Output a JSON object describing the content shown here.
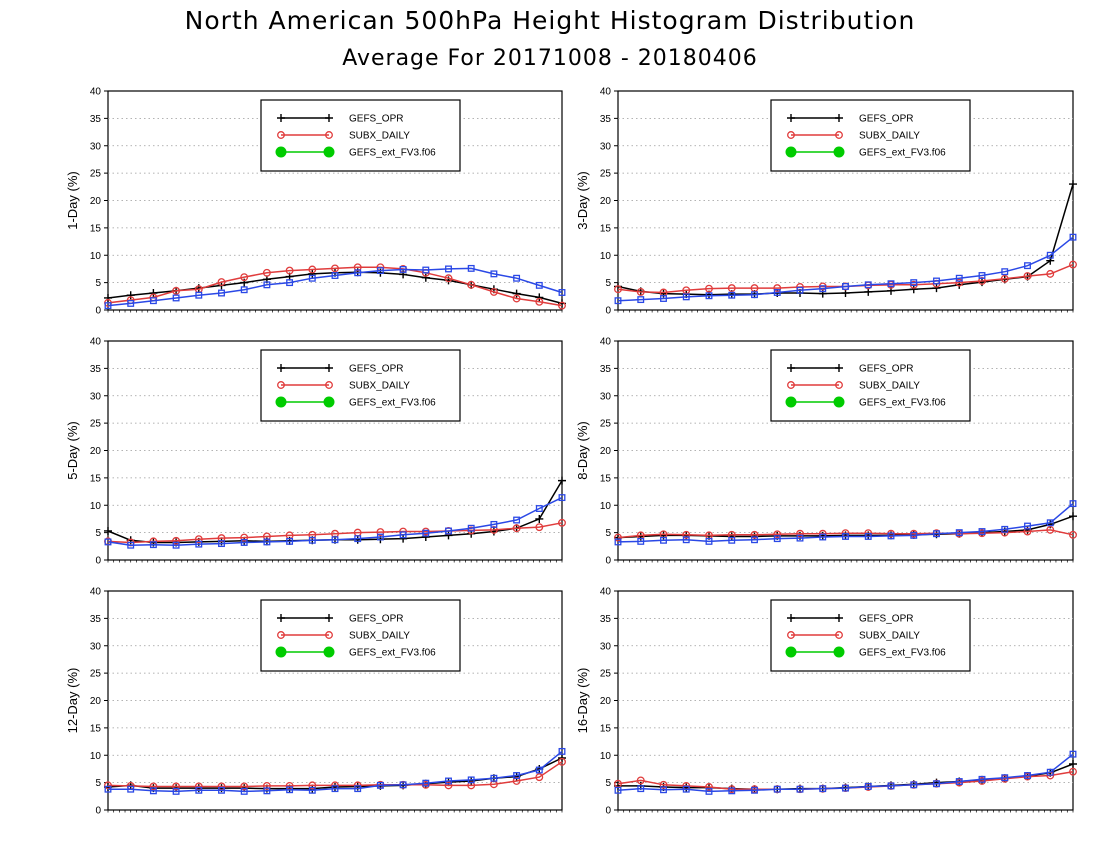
{
  "header": {
    "title": "North American 500hPa Height Histogram Distribution",
    "subtitle": "Average For 20171008 - 20180406"
  },
  "colors": {
    "GEFS_OPR": "#000000",
    "SUBX_DAILY": "#e03c3c",
    "GEFS_ext_FV3.f06": "#00cc00",
    "fourth_series": "#2a48e6"
  },
  "chart_data": [
    {
      "type": "line",
      "ylabel": "1-Day (%)",
      "ylim": [
        0,
        40
      ],
      "yticks": [
        "0",
        "5",
        "10",
        "15",
        "20",
        "25",
        "30",
        "35",
        "40"
      ],
      "x": [
        0,
        1,
        2,
        3,
        4,
        5,
        6,
        7,
        8,
        9,
        10,
        11,
        12,
        13,
        14,
        15,
        16,
        17,
        18,
        19,
        20
      ],
      "grid": true,
      "legend_position": "top-center",
      "legend": [
        "GEFS_OPR",
        "SUBX_DAILY",
        "GEFS_ext_FV3.f06"
      ],
      "series": [
        {
          "values": [
            2.2,
            2.7,
            3.1,
            3.5,
            4.0,
            4.5,
            5.0,
            5.6,
            6.1,
            6.6,
            6.8,
            6.9,
            6.8,
            6.5,
            5.9,
            5.4,
            4.6,
            3.8,
            3.0,
            2.3,
            1.2
          ]
        },
        {
          "values": [
            1.3,
            1.8,
            2.3,
            3.5,
            3.8,
            5.1,
            6.0,
            6.8,
            7.2,
            7.4,
            7.6,
            7.8,
            7.8,
            7.5,
            6.8,
            5.8,
            4.6,
            3.3,
            2.1,
            1.5,
            0.8
          ]
        },
        {
          "values": [
            0.8,
            1.2,
            1.7,
            2.2,
            2.7,
            3.1,
            3.7,
            4.6,
            5.0,
            5.8,
            6.3,
            6.8,
            7.2,
            7.4,
            7.3,
            7.5,
            7.6,
            6.6,
            5.8,
            4.5,
            3.2
          ]
        }
      ]
    },
    {
      "type": "line",
      "ylabel": "3-Day (%)",
      "ylim": [
        0,
        40
      ],
      "yticks": [
        "0",
        "5",
        "10",
        "15",
        "20",
        "25",
        "30",
        "35",
        "40"
      ],
      "x": [
        0,
        1,
        2,
        3,
        4,
        5,
        6,
        7,
        8,
        9,
        10,
        11,
        12,
        13,
        14,
        15,
        16,
        17,
        18,
        19,
        20
      ],
      "grid": true,
      "legend_position": "top-center",
      "legend": [
        "GEFS_OPR",
        "SUBX_DAILY",
        "GEFS_ext_FV3.f06"
      ],
      "series": [
        {
          "values": [
            4.3,
            3.4,
            3.0,
            2.9,
            2.8,
            2.9,
            2.9,
            3.1,
            3.1,
            3.0,
            3.1,
            3.3,
            3.5,
            3.8,
            4.0,
            4.6,
            5.1,
            5.6,
            6.1,
            9.0,
            23.0
          ]
        },
        {
          "values": [
            3.8,
            3.3,
            3.2,
            3.6,
            3.9,
            4.0,
            4.0,
            4.0,
            4.2,
            4.3,
            4.3,
            4.5,
            4.6,
            4.6,
            4.8,
            5.0,
            5.3,
            5.7,
            6.2,
            6.6,
            8.3
          ]
        },
        {
          "values": [
            1.7,
            1.9,
            2.1,
            2.4,
            2.6,
            2.7,
            2.8,
            3.2,
            3.6,
            3.9,
            4.3,
            4.6,
            4.8,
            5.0,
            5.3,
            5.8,
            6.3,
            7.0,
            8.1,
            10.0,
            13.3
          ]
        }
      ]
    },
    {
      "type": "line",
      "ylabel": "5-Day (%)",
      "ylim": [
        0,
        40
      ],
      "yticks": [
        "0",
        "5",
        "10",
        "15",
        "20",
        "25",
        "30",
        "35",
        "40"
      ],
      "x": [
        0,
        1,
        2,
        3,
        4,
        5,
        6,
        7,
        8,
        9,
        10,
        11,
        12,
        13,
        14,
        15,
        16,
        17,
        18,
        19,
        20
      ],
      "grid": true,
      "legend_position": "top-center",
      "legend": [
        "GEFS_OPR",
        "SUBX_DAILY",
        "GEFS_ext_FV3.f06"
      ],
      "series": [
        {
          "values": [
            5.3,
            3.6,
            3.2,
            3.2,
            3.3,
            3.4,
            3.5,
            3.4,
            3.5,
            3.6,
            3.7,
            3.7,
            3.8,
            3.9,
            4.2,
            4.5,
            4.8,
            5.2,
            5.8,
            7.5,
            14.5
          ]
        },
        {
          "values": [
            3.4,
            3.2,
            3.4,
            3.5,
            3.8,
            4.0,
            4.1,
            4.3,
            4.5,
            4.6,
            4.8,
            5.0,
            5.1,
            5.2,
            5.2,
            5.3,
            5.4,
            5.5,
            5.8,
            6.0,
            6.8
          ]
        },
        {
          "values": [
            3.3,
            2.7,
            2.8,
            2.7,
            2.9,
            3.0,
            3.2,
            3.3,
            3.4,
            3.6,
            3.7,
            3.9,
            4.2,
            4.6,
            4.9,
            5.3,
            5.8,
            6.5,
            7.3,
            9.4,
            11.4
          ]
        }
      ]
    },
    {
      "type": "line",
      "ylabel": "8-Day (%)",
      "ylim": [
        0,
        40
      ],
      "yticks": [
        "0",
        "5",
        "10",
        "15",
        "20",
        "25",
        "30",
        "35",
        "40"
      ],
      "x": [
        0,
        1,
        2,
        3,
        4,
        5,
        6,
        7,
        8,
        9,
        10,
        11,
        12,
        13,
        14,
        15,
        16,
        17,
        18,
        19,
        20
      ],
      "grid": true,
      "legend_position": "top-center",
      "legend": [
        "GEFS_OPR",
        "SUBX_DAILY",
        "GEFS_ext_FV3.f06"
      ],
      "series": [
        {
          "values": [
            4.1,
            4.3,
            4.5,
            4.5,
            4.4,
            4.3,
            4.3,
            4.4,
            4.4,
            4.4,
            4.5,
            4.5,
            4.5,
            4.6,
            4.7,
            4.8,
            5.0,
            5.2,
            5.5,
            6.5,
            8.0
          ]
        },
        {
          "values": [
            4.1,
            4.5,
            4.7,
            4.6,
            4.5,
            4.6,
            4.6,
            4.7,
            4.8,
            4.8,
            4.9,
            4.9,
            4.8,
            4.8,
            4.9,
            4.8,
            4.9,
            5.0,
            5.2,
            5.5,
            4.6
          ]
        },
        {
          "values": [
            3.3,
            3.4,
            3.6,
            3.7,
            3.4,
            3.6,
            3.7,
            3.9,
            4.0,
            4.2,
            4.3,
            4.3,
            4.4,
            4.5,
            4.8,
            5.0,
            5.2,
            5.6,
            6.2,
            6.8,
            10.3
          ]
        }
      ]
    },
    {
      "type": "line",
      "ylabel": "12-Day (%)",
      "ylim": [
        0,
        40
      ],
      "yticks": [
        "0",
        "5",
        "10",
        "15",
        "20",
        "25",
        "30",
        "35",
        "40"
      ],
      "x": [
        0,
        1,
        2,
        3,
        4,
        5,
        6,
        7,
        8,
        9,
        10,
        11,
        12,
        13,
        14,
        15,
        16,
        17,
        18,
        19,
        20
      ],
      "grid": true,
      "legend_position": "top-center",
      "legend": [
        "GEFS_OPR",
        "SUBX_DAILY",
        "GEFS_ext_FV3.f06"
      ],
      "series": [
        {
          "values": [
            4.2,
            4.5,
            4.0,
            4.0,
            4.0,
            4.0,
            4.0,
            3.9,
            3.9,
            3.9,
            4.2,
            4.3,
            4.4,
            4.5,
            4.8,
            5.1,
            5.3,
            5.8,
            6.1,
            7.5,
            9.5
          ]
        },
        {
          "values": [
            4.5,
            4.4,
            4.3,
            4.3,
            4.3,
            4.3,
            4.3,
            4.4,
            4.4,
            4.5,
            4.5,
            4.5,
            4.6,
            4.6,
            4.6,
            4.5,
            4.5,
            4.7,
            5.3,
            6.0,
            8.8
          ]
        },
        {
          "values": [
            3.8,
            3.8,
            3.5,
            3.4,
            3.6,
            3.6,
            3.4,
            3.5,
            3.7,
            3.6,
            3.9,
            3.9,
            4.5,
            4.6,
            4.9,
            5.3,
            5.5,
            5.8,
            6.3,
            7.3,
            10.7
          ]
        }
      ]
    },
    {
      "type": "line",
      "ylabel": "16-Day (%)",
      "ylim": [
        0,
        40
      ],
      "yticks": [
        "0",
        "5",
        "10",
        "15",
        "20",
        "25",
        "30",
        "35",
        "40"
      ],
      "x": [
        0,
        1,
        2,
        3,
        4,
        5,
        6,
        7,
        8,
        9,
        10,
        11,
        12,
        13,
        14,
        15,
        16,
        17,
        18,
        19,
        20
      ],
      "grid": true,
      "legend_position": "top-center",
      "legend": [
        "GEFS_OPR",
        "SUBX_DAILY",
        "GEFS_ext_FV3.f06"
      ],
      "series": [
        {
          "values": [
            4.4,
            4.4,
            4.2,
            4.1,
            4.1,
            3.9,
            3.8,
            3.8,
            3.9,
            3.9,
            4.1,
            4.3,
            4.5,
            4.7,
            5.0,
            5.2,
            5.5,
            5.8,
            6.2,
            6.8,
            8.4
          ]
        },
        {
          "values": [
            4.8,
            5.4,
            4.6,
            4.4,
            4.2,
            3.8,
            3.8,
            3.8,
            3.8,
            3.9,
            4.0,
            4.2,
            4.4,
            4.6,
            4.8,
            5.0,
            5.3,
            5.7,
            6.1,
            6.3,
            7.0
          ]
        },
        {
          "values": [
            3.6,
            3.9,
            3.7,
            3.8,
            3.4,
            3.5,
            3.6,
            3.8,
            3.8,
            3.9,
            4.0,
            4.3,
            4.4,
            4.6,
            4.8,
            5.2,
            5.6,
            5.9,
            6.3,
            6.9,
            10.2
          ]
        }
      ]
    }
  ]
}
